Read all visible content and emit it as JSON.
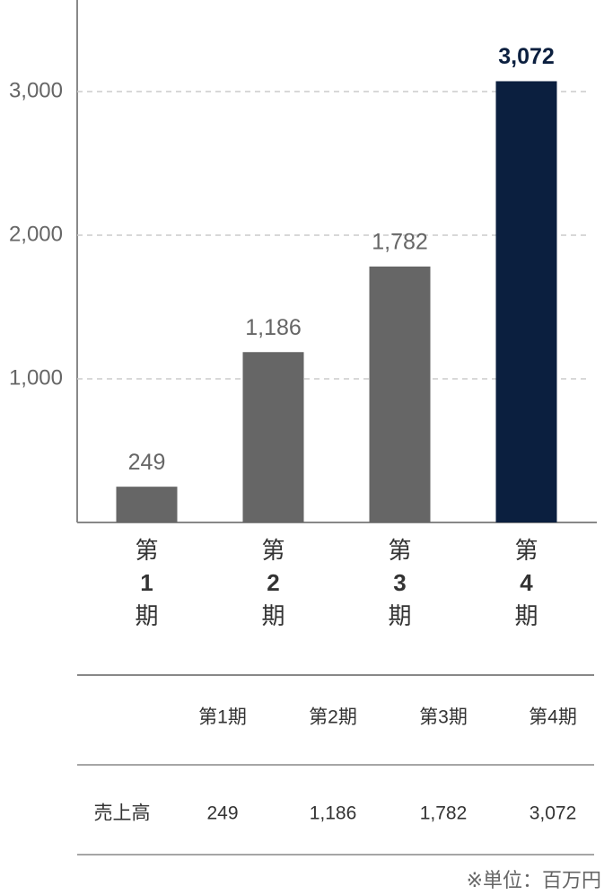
{
  "chart_data": {
    "type": "bar",
    "categories": [
      [
        "第",
        "1",
        "期"
      ],
      [
        "第",
        "2",
        "期"
      ],
      [
        "第",
        "3",
        "期"
      ],
      [
        "第",
        "4",
        "期"
      ]
    ],
    "values": [
      249,
      1186,
      1782,
      3072
    ],
    "value_labels": [
      "249",
      "1,186",
      "1,782",
      "3,072"
    ],
    "colors": [
      "#666666",
      "#666666",
      "#666666",
      "#0b1f3f"
    ],
    "ylim": [
      0,
      3600
    ],
    "yticks": [
      {
        "value": 1000,
        "label": "1,000"
      },
      {
        "value": 2000,
        "label": "2,000"
      },
      {
        "value": 3000,
        "label": "3,000"
      }
    ],
    "grid": true
  },
  "table": {
    "columns": [
      "第1期",
      "第2期",
      "第3期",
      "第4期"
    ],
    "rows": [
      [
        "売上高",
        "249",
        "1,186",
        "1,782",
        "3,072"
      ]
    ]
  },
  "note": "※単位：百万円"
}
